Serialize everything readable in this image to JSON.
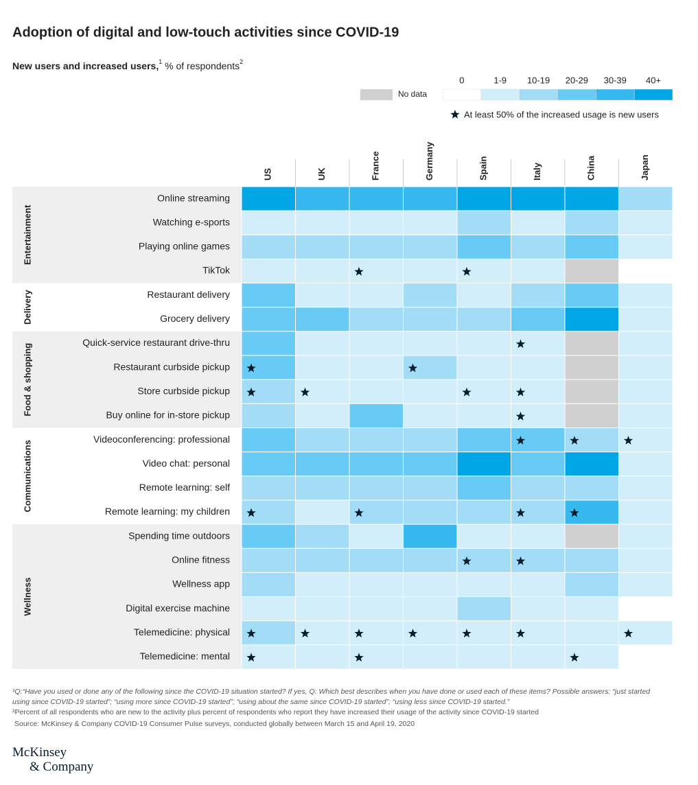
{
  "chart_data": {
    "type": "heatmap",
    "title": "Adoption of digital and low-touch activities since COVID-19",
    "subtitle": "New users and increased users,",
    "subtitle_sup1": "1",
    "subtitle_unit": " % of respondents",
    "subtitle_sup2": "2",
    "columns": [
      "US",
      "UK",
      "France",
      "Germany",
      "Spain",
      "Italy",
      "China",
      "Japan"
    ],
    "legend": {
      "no_data": {
        "label": "No data",
        "color": "#d0d0d0"
      },
      "scale": [
        {
          "label": "0",
          "min": 0,
          "color": "#ffffff"
        },
        {
          "label": "1-9",
          "min": 1,
          "color": "#d1eefa"
        },
        {
          "label": "10-19",
          "min": 10,
          "color": "#a2dcf6"
        },
        {
          "label": "20-29",
          "min": 20,
          "color": "#68cbf5"
        },
        {
          "label": "30-39",
          "min": 30,
          "color": "#37b8ef"
        },
        {
          "label": "40+",
          "min": 40,
          "color": "#00a6e6"
        }
      ],
      "star_note": "At least 50% of the increased usage is new users",
      "star_color": "#051c2c"
    },
    "groups": [
      {
        "name": "Entertainment",
        "rows": [
          {
            "label": "Online streaming",
            "values": [
              45,
              35,
              35,
              35,
              45,
              45,
              45,
              15
            ],
            "stars": [
              false,
              false,
              false,
              false,
              false,
              false,
              false,
              false
            ]
          },
          {
            "label": "Watching e-sports",
            "values": [
              5,
              5,
              5,
              5,
              15,
              5,
              15,
              5
            ],
            "stars": [
              false,
              false,
              false,
              false,
              false,
              false,
              false,
              false
            ]
          },
          {
            "label": "Playing online games",
            "values": [
              15,
              15,
              15,
              15,
              25,
              15,
              25,
              5
            ],
            "stars": [
              false,
              false,
              false,
              false,
              false,
              false,
              false,
              false
            ]
          },
          {
            "label": "TikTok",
            "values": [
              5,
              5,
              5,
              5,
              5,
              5,
              null,
              0
            ],
            "stars": [
              false,
              false,
              true,
              false,
              true,
              false,
              false,
              false
            ]
          }
        ]
      },
      {
        "name": "Delivery",
        "rows": [
          {
            "label": "Restaurant delivery",
            "values": [
              25,
              5,
              5,
              15,
              5,
              15,
              25,
              5
            ],
            "stars": [
              false,
              false,
              false,
              false,
              false,
              false,
              false,
              false
            ]
          },
          {
            "label": "Grocery delivery",
            "values": [
              25,
              25,
              15,
              15,
              15,
              25,
              45,
              5
            ],
            "stars": [
              false,
              false,
              false,
              false,
              false,
              false,
              false,
              false
            ]
          }
        ]
      },
      {
        "name": "Food & shopping",
        "rows": [
          {
            "label": "Quick-service restaurant drive-thru",
            "values": [
              25,
              5,
              5,
              5,
              5,
              5,
              null,
              5
            ],
            "stars": [
              false,
              false,
              false,
              false,
              false,
              true,
              false,
              false
            ]
          },
          {
            "label": "Restaurant curbside pickup",
            "values": [
              25,
              5,
              5,
              15,
              5,
              5,
              null,
              5
            ],
            "stars": [
              true,
              false,
              false,
              true,
              false,
              false,
              false,
              false
            ]
          },
          {
            "label": "Store curbside pickup",
            "values": [
              15,
              5,
              5,
              5,
              5,
              5,
              null,
              5
            ],
            "stars": [
              true,
              true,
              false,
              false,
              true,
              true,
              false,
              false
            ]
          },
          {
            "label": "Buy online for in-store pickup",
            "values": [
              15,
              5,
              25,
              5,
              5,
              5,
              null,
              5
            ],
            "stars": [
              false,
              false,
              false,
              false,
              false,
              true,
              false,
              false
            ]
          }
        ]
      },
      {
        "name": "Communications",
        "rows": [
          {
            "label": "Videoconferencing: professional",
            "values": [
              25,
              15,
              15,
              15,
              25,
              25,
              15,
              5
            ],
            "stars": [
              false,
              false,
              false,
              false,
              false,
              true,
              true,
              true
            ]
          },
          {
            "label": "Video chat: personal",
            "values": [
              25,
              25,
              25,
              25,
              45,
              25,
              45,
              5
            ],
            "stars": [
              false,
              false,
              false,
              false,
              false,
              false,
              false,
              false
            ]
          },
          {
            "label": "Remote learning: self",
            "values": [
              15,
              15,
              15,
              15,
              25,
              15,
              15,
              5
            ],
            "stars": [
              false,
              false,
              false,
              false,
              false,
              false,
              false,
              false
            ]
          },
          {
            "label": "Remote learning: my children",
            "values": [
              15,
              5,
              15,
              15,
              15,
              15,
              35,
              5
            ],
            "stars": [
              true,
              false,
              true,
              false,
              false,
              true,
              true,
              false
            ]
          }
        ]
      },
      {
        "name": "Wellness",
        "rows": [
          {
            "label": "Spending time outdoors",
            "values": [
              25,
              15,
              5,
              35,
              5,
              5,
              null,
              5
            ],
            "stars": [
              false,
              false,
              false,
              false,
              false,
              false,
              false,
              false
            ]
          },
          {
            "label": "Online fitness",
            "values": [
              15,
              15,
              15,
              15,
              15,
              15,
              15,
              5
            ],
            "stars": [
              false,
              false,
              false,
              false,
              true,
              true,
              false,
              false
            ]
          },
          {
            "label": "Wellness app",
            "values": [
              15,
              5,
              5,
              5,
              5,
              5,
              15,
              5
            ],
            "stars": [
              false,
              false,
              false,
              false,
              false,
              false,
              false,
              false
            ]
          },
          {
            "label": "Digital exercise machine",
            "values": [
              5,
              5,
              5,
              5,
              15,
              5,
              5,
              0
            ],
            "stars": [
              false,
              false,
              false,
              false,
              false,
              false,
              false,
              false
            ]
          },
          {
            "label": "Telemedicine: physical",
            "values": [
              15,
              5,
              5,
              5,
              5,
              5,
              5,
              5
            ],
            "stars": [
              true,
              true,
              true,
              true,
              true,
              true,
              false,
              true
            ]
          },
          {
            "label": "Telemedicine: mental",
            "values": [
              5,
              5,
              5,
              5,
              5,
              5,
              5,
              0
            ],
            "stars": [
              true,
              false,
              true,
              false,
              false,
              false,
              true,
              false
            ]
          }
        ]
      }
    ]
  },
  "footnotes": [
    "¹Q:“Have you used or done any of the following since the COVID-19 situation started? If yes, Q: Which best describes when you have done or used each of these items? Possible answers: “just started using since COVID-19 started”; “using more since COVID-19 started”; “using about the same since COVID-19 started”; “using less since COVID-19 started.”",
    "²Percent of all respondents who are new to the activity plus percent of respondents who report they have increased their usage of the activity since COVID-19 started",
    "Source: McKinsey & Company COVID-19 Consumer Pulse surveys, conducted globally between March 15 and April 19, 2020"
  ],
  "logo": [
    "McKinsey",
    "& Company"
  ]
}
